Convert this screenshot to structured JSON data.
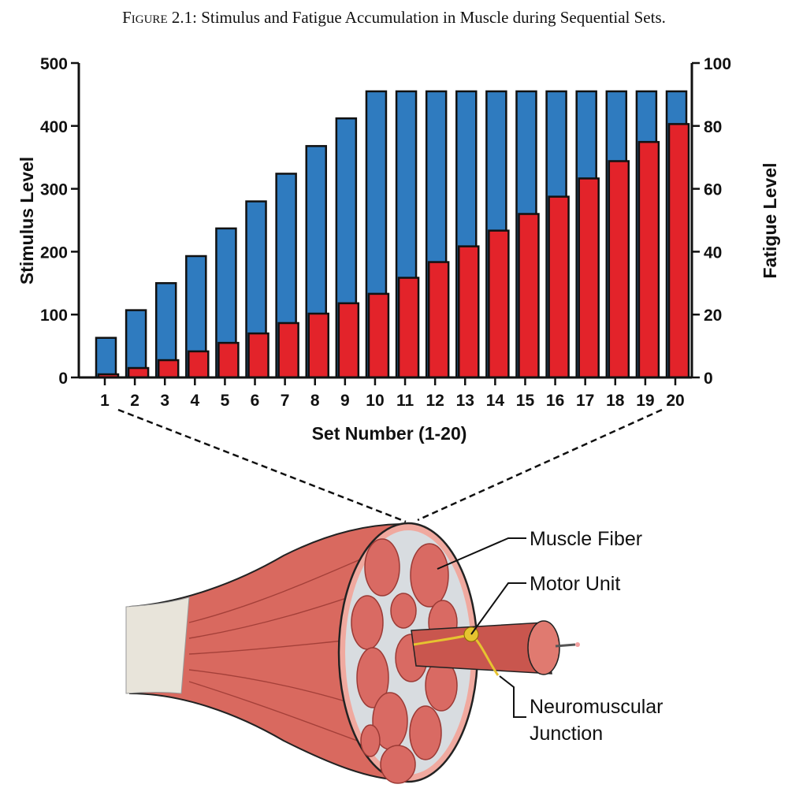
{
  "figure": {
    "label": "Figure 2.1:",
    "caption": "Stimulus and Fatigue Accumulation in Muscle during Sequential Sets."
  },
  "chart_data": {
    "type": "bar",
    "title": "",
    "xlabel": "Set Number (1-20)",
    "ylabel_left": "Stimulus Level",
    "ylabel_right": "Fatigue Level",
    "ylim_left": [
      0,
      500
    ],
    "ylim_right": [
      0,
      100
    ],
    "yticks_left": [
      0,
      100,
      200,
      300,
      400,
      500
    ],
    "yticks_right": [
      0,
      20,
      40,
      60,
      80,
      100
    ],
    "categories": [
      "1",
      "2",
      "3",
      "4",
      "5",
      "6",
      "7",
      "8",
      "9",
      "10",
      "11",
      "12",
      "13",
      "14",
      "15",
      "16",
      "17",
      "18",
      "19",
      "20"
    ],
    "grid": false,
    "legend": "none",
    "series": [
      {
        "axis": "left",
        "color": "#2f7bbf",
        "values": [
          63,
          107,
          150,
          193,
          237,
          280,
          324,
          368,
          412,
          455,
          455,
          455,
          455,
          455,
          455,
          455,
          455,
          455,
          455,
          455
        ]
      },
      {
        "axis": "right",
        "color": "#e3232a",
        "values": [
          1,
          3,
          5.5,
          8.3,
          11,
          14,
          17.3,
          20.3,
          23.6,
          26.6,
          31.7,
          36.7,
          41.7,
          46.7,
          52,
          57.5,
          63.3,
          68.8,
          74.9,
          80.6
        ]
      }
    ]
  },
  "illustration": {
    "labels": {
      "muscle_fiber": "Muscle Fiber",
      "motor_unit": "Motor Unit",
      "nmj_line1": "Neuromuscular",
      "nmj_line2": "Junction"
    },
    "colors": {
      "muscle": "#d9695f",
      "tendon": "#e8e4da",
      "nerve": "#e6c330"
    }
  }
}
